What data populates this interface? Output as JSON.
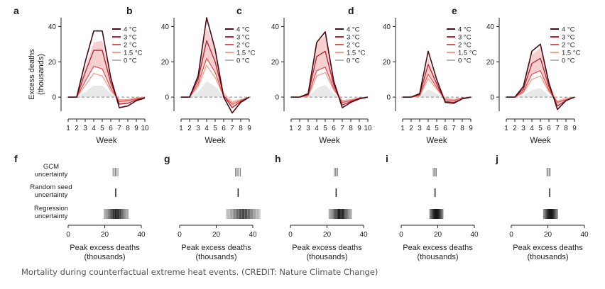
{
  "chart_data": {
    "type": "line",
    "caption": "Mortality during counterfactual extreme heat events. (CREDIT: Nature Climate Change)",
    "legend_labels": [
      "4 °C",
      "3 °C",
      "2 °C",
      "1.5 °C",
      "0 °C"
    ],
    "colors": {
      "4C": "#4a0a14",
      "3C": "#b0222e",
      "2C": "#e0595a",
      "1.5C": "#f2a08c",
      "0C": "#b8b8b8",
      "band": "#f5c8c8",
      "zero_fill": "#e8e8e8",
      "uncertainty": "#222222"
    },
    "y_label_lines": [
      "Excess deaths",
      "(thousands)"
    ],
    "y_ticks": [
      0,
      20,
      40
    ],
    "ylim": [
      -10,
      47
    ],
    "x_label": "Week",
    "panels": [
      {
        "letter": "a",
        "weeks": [
          1,
          2,
          3,
          4,
          5,
          6,
          7,
          8,
          9,
          10
        ],
        "series": [
          {
            "name": "4 °C",
            "values": [
              0,
              0,
              20,
              37.5,
              37.5,
              11,
              -6,
              -5,
              -2,
              -0.5
            ]
          },
          {
            "name": "3 °C",
            "values": [
              0,
              0,
              14,
              26.5,
              26.5,
              8,
              -4,
              -3.5,
              -1.5,
              -0.3
            ]
          },
          {
            "name": "2 °C",
            "values": [
              0,
              0,
              9,
              17.5,
              16,
              5,
              -2.5,
              -2,
              -1,
              -0.2
            ]
          },
          {
            "name": "1.5 °C",
            "values": [
              0,
              0,
              6.5,
              13.5,
              12,
              3.5,
              -1.5,
              -1.5,
              -0.5,
              0
            ]
          },
          {
            "name": "0 °C",
            "values": [
              0,
              0,
              3,
              6.5,
              6.5,
              2,
              0,
              0,
              0,
              0
            ]
          }
        ],
        "band_upper": [
          0,
          0,
          17,
          31,
          32,
          10,
          -1.5,
          -1,
          0,
          0
        ],
        "band_lower": [
          0,
          0,
          9,
          17.5,
          16,
          5,
          -4,
          -3.5,
          -1.5,
          -0.3
        ]
      },
      {
        "letter": "b",
        "weeks": [
          1,
          2,
          3,
          4,
          5,
          6,
          7,
          8,
          9
        ],
        "series": [
          {
            "name": "4 °C",
            "values": [
              0,
              0,
              12,
              45,
              27,
              0,
              -9,
              -3,
              0
            ]
          },
          {
            "name": "3 °C",
            "values": [
              0,
              0,
              10,
              32,
              20,
              1,
              -6,
              -2.5,
              0
            ]
          },
          {
            "name": "2 °C",
            "values": [
              0,
              0,
              7.5,
              22,
              14,
              0.5,
              -4,
              -2,
              0
            ]
          },
          {
            "name": "1.5 °C",
            "values": [
              0,
              0,
              6,
              18,
              11,
              0.5,
              -3,
              -1.5,
              0
            ]
          },
          {
            "name": "0 °C",
            "values": [
              0,
              0,
              3,
              9,
              6,
              0,
              0,
              0,
              0
            ]
          }
        ],
        "band_upper": [
          0,
          0,
          12,
          40,
          27,
          3,
          -2,
          -1,
          0
        ],
        "band_lower": [
          0,
          0,
          7.5,
          22,
          14,
          0.5,
          -6,
          -2.5,
          0
        ]
      },
      {
        "letter": "c",
        "weeks": [
          1,
          2,
          3,
          4,
          5,
          6,
          7,
          8,
          9,
          10
        ],
        "series": [
          {
            "name": "4 °C",
            "values": [
              0,
              0,
              2,
              31,
              37,
              9,
              -6,
              -3,
              -1,
              0
            ]
          },
          {
            "name": "3 °C",
            "values": [
              0,
              0,
              1.5,
              23,
              26,
              7,
              -4.5,
              -2.5,
              -0.8,
              0
            ]
          },
          {
            "name": "2 °C",
            "values": [
              0,
              0,
              1,
              15,
              17,
              5,
              -3,
              -2,
              -0.5,
              0
            ]
          },
          {
            "name": "1.5 °C",
            "values": [
              0,
              0,
              0.5,
              12,
              14,
              4,
              -2,
              -1.5,
              -0.5,
              0
            ]
          },
          {
            "name": "0 °C",
            "values": [
              0,
              0,
              0,
              5,
              7,
              2,
              0,
              0,
              0,
              0
            ]
          }
        ],
        "band_upper": [
          0,
          0,
          2,
          31,
          35,
          9,
          -2,
          -1,
          0,
          0
        ],
        "band_lower": [
          0,
          0,
          1,
          15,
          17,
          5,
          -4.5,
          -2.5,
          -0.8,
          0
        ]
      },
      {
        "letter": "d",
        "weeks": [
          1,
          2,
          3,
          4,
          5,
          6,
          7,
          8,
          9
        ],
        "series": [
          {
            "name": "4 °C",
            "values": [
              0,
              0,
              2,
              26,
              10,
              -3,
              -3.5,
              -1,
              0
            ]
          },
          {
            "name": "3 °C",
            "values": [
              0,
              0,
              1.5,
              18.5,
              7.5,
              -2.5,
              -3,
              -1,
              0
            ]
          },
          {
            "name": "2 °C",
            "values": [
              0,
              0,
              1,
              13,
              5.5,
              -1.5,
              -2,
              -0.5,
              0
            ]
          },
          {
            "name": "1.5 °C",
            "values": [
              0,
              0,
              0.5,
              10.5,
              4.5,
              -1,
              -1.5,
              -0.5,
              0
            ]
          },
          {
            "name": "0 °C",
            "values": [
              0,
              0,
              0,
              4.5,
              2,
              0,
              0,
              0,
              0
            ]
          }
        ],
        "band_upper": [
          0,
          0,
          2,
          22,
          9,
          0,
          -1,
          0,
          0
        ],
        "band_lower": [
          0,
          0,
          1,
          13,
          5.5,
          -2.5,
          -3,
          -1,
          0
        ]
      },
      {
        "letter": "e",
        "weeks": [
          1,
          2,
          3,
          4,
          5,
          6,
          7,
          8,
          9
        ],
        "series": [
          {
            "name": "4 °C",
            "values": [
              0,
              0,
              6,
              26,
              30,
              8,
              -7,
              -2,
              0
            ]
          },
          {
            "name": "3 °C",
            "values": [
              0,
              0,
              4.5,
              19,
              22,
              6,
              -5,
              -2,
              0
            ]
          },
          {
            "name": "2 °C",
            "values": [
              0,
              0,
              3,
              13,
              15,
              4,
              -3,
              -1.5,
              0
            ]
          },
          {
            "name": "1.5 °C",
            "values": [
              0,
              0,
              2.5,
              10,
              12,
              3,
              -2.5,
              -1,
              0
            ]
          },
          {
            "name": "0 °C",
            "values": [
              0,
              0,
              1,
              4,
              5,
              1,
              0,
              0,
              0
            ]
          }
        ],
        "band_upper": [
          0,
          0,
          6,
          24,
          28,
          8,
          -2,
          0,
          0
        ],
        "band_lower": [
          0,
          0,
          3,
          13,
          15,
          4,
          -5,
          -2,
          0
        ]
      }
    ],
    "uncertainty_row_labels": [
      [
        "GCM",
        "uncertainty"
      ],
      [
        "Random seed",
        "uncertainty"
      ],
      [
        "Regression",
        "uncertainty"
      ]
    ],
    "uncertainty_x_label_lines": [
      "Peak excess deaths",
      "(thousands)"
    ],
    "uncertainty_x_ticks": [
      0,
      20,
      40
    ],
    "uncertainty_xlim": [
      0,
      45
    ],
    "uncertainty_panels": [
      {
        "letter": "f",
        "gcm": [
          24.5,
          25.2,
          25.8,
          26.4,
          27.2
        ],
        "seed": [
          26
        ],
        "regression": [
          19.5,
          33
        ]
      },
      {
        "letter": "g",
        "gcm": [
          30.5,
          31.2,
          31.8,
          32.5,
          33.2
        ],
        "seed": [
          32
        ],
        "regression": [
          25.5,
          44
        ]
      },
      {
        "letter": "h",
        "gcm": [
          24,
          24.6,
          25.2,
          25.9
        ],
        "seed": [
          25
        ],
        "regression": [
          21,
          33.5
        ]
      },
      {
        "letter": "i",
        "gcm": [
          17.5,
          18.1,
          18.7,
          19.2
        ],
        "seed": [
          18.5
        ],
        "regression": [
          15.5,
          23
        ]
      },
      {
        "letter": "j",
        "gcm": [
          19.5,
          20.1,
          20.7,
          21.3
        ],
        "seed": [
          21
        ],
        "regression": [
          17.5,
          25.5
        ]
      }
    ]
  }
}
